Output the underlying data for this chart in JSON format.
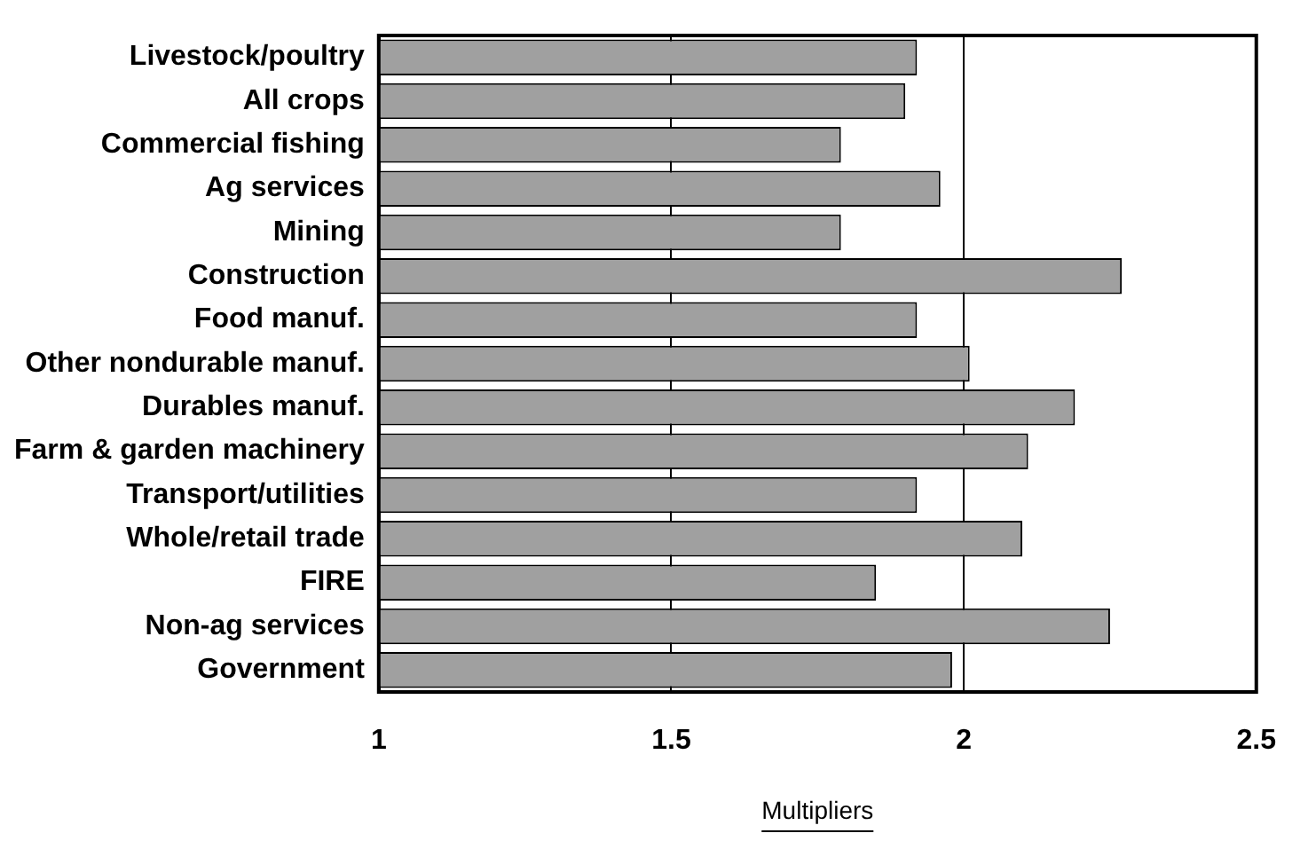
{
  "chart_data": {
    "type": "bar",
    "orientation": "horizontal",
    "xlabel": "Multipliers",
    "categories": [
      "Livestock/poultry",
      "All crops",
      "Commercial fishing",
      "Ag services",
      "Mining",
      "Construction",
      "Food manuf.",
      "Other nondurable manuf.",
      "Durables manuf.",
      "Farm & garden machinery",
      "Transport/utilities",
      "Whole/retail trade",
      "FIRE",
      "Non-ag services",
      "Government"
    ],
    "values": [
      1.92,
      1.9,
      1.79,
      1.96,
      1.79,
      2.27,
      1.92,
      2.01,
      2.19,
      2.11,
      1.92,
      2.1,
      1.85,
      2.25,
      1.98
    ],
    "color": "#a0a0a0",
    "xlim": [
      1,
      2.5
    ],
    "xticks": [
      1,
      1.5,
      2,
      2.5
    ],
    "grid": "x",
    "legend": false
  }
}
